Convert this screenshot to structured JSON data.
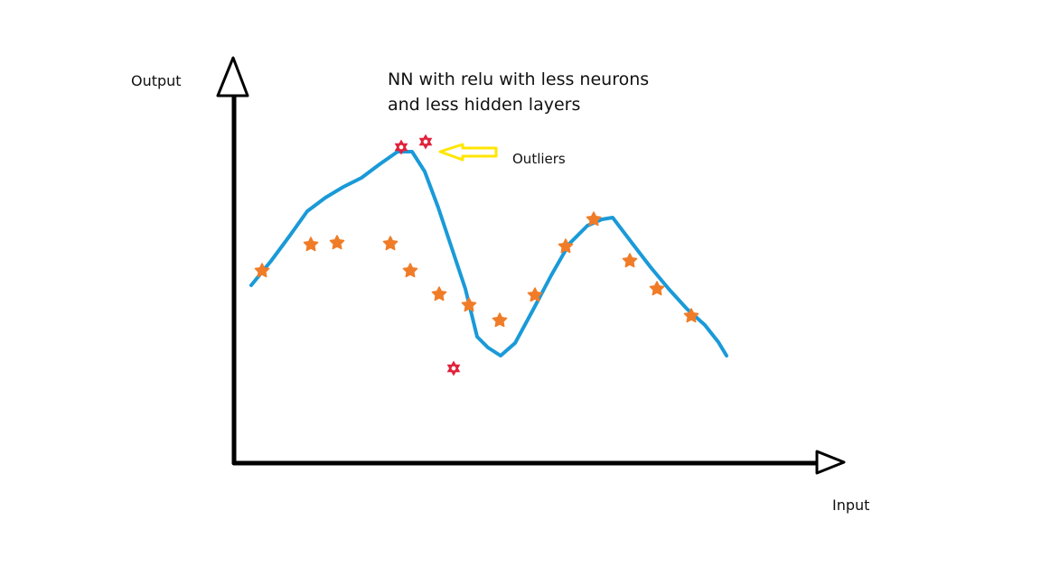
{
  "title_line_1": "NN with relu with less neurons",
  "title_line_2": "and less hidden layers",
  "y_axis_label": "Output",
  "x_axis_label": "Input",
  "outlier_label": "Outliers",
  "colors": {
    "axis": "#000000",
    "curve": "#1a9ad8",
    "points": "#f07c28",
    "outliers": "#e0203a",
    "arrow": "#ffe600"
  },
  "icons": {
    "data_point": "star-icon",
    "outlier": "hexagram-icon",
    "pointer": "left-arrow-icon"
  },
  "chart_data": {
    "type": "scatter",
    "title": "NN with relu with less neurons and less hidden layers",
    "xlabel": "Input",
    "ylabel": "Output",
    "points": [
      [
        290,
        300
      ],
      [
        344,
        271
      ],
      [
        373,
        269
      ],
      [
        432,
        270
      ],
      [
        454,
        300
      ],
      [
        486,
        326
      ],
      [
        519,
        338
      ],
      [
        553,
        355
      ],
      [
        592,
        327
      ],
      [
        626,
        273
      ],
      [
        657,
        243
      ],
      [
        697,
        289
      ],
      [
        727,
        320
      ],
      [
        765,
        350
      ]
    ],
    "outliers": [
      [
        444,
        163
      ],
      [
        471,
        157
      ],
      [
        502,
        408
      ]
    ],
    "curve": [
      [
        278,
        316
      ],
      [
        300,
        289
      ],
      [
        320,
        262
      ],
      [
        340,
        234
      ],
      [
        360,
        219
      ],
      [
        380,
        207
      ],
      [
        400,
        197
      ],
      [
        420,
        182
      ],
      [
        440,
        168
      ],
      [
        456,
        168
      ],
      [
        470,
        190
      ],
      [
        485,
        230
      ],
      [
        500,
        275
      ],
      [
        515,
        320
      ],
      [
        528,
        373
      ],
      [
        540,
        385
      ],
      [
        554,
        394
      ],
      [
        570,
        380
      ],
      [
        590,
        343
      ],
      [
        610,
        305
      ],
      [
        630,
        270
      ],
      [
        650,
        250
      ],
      [
        666,
        243
      ],
      [
        678,
        241
      ],
      [
        700,
        270
      ],
      [
        720,
        296
      ],
      [
        740,
        320
      ],
      [
        760,
        342
      ],
      [
        780,
        360
      ],
      [
        795,
        379
      ],
      [
        804,
        394
      ]
    ],
    "grid": false
  }
}
